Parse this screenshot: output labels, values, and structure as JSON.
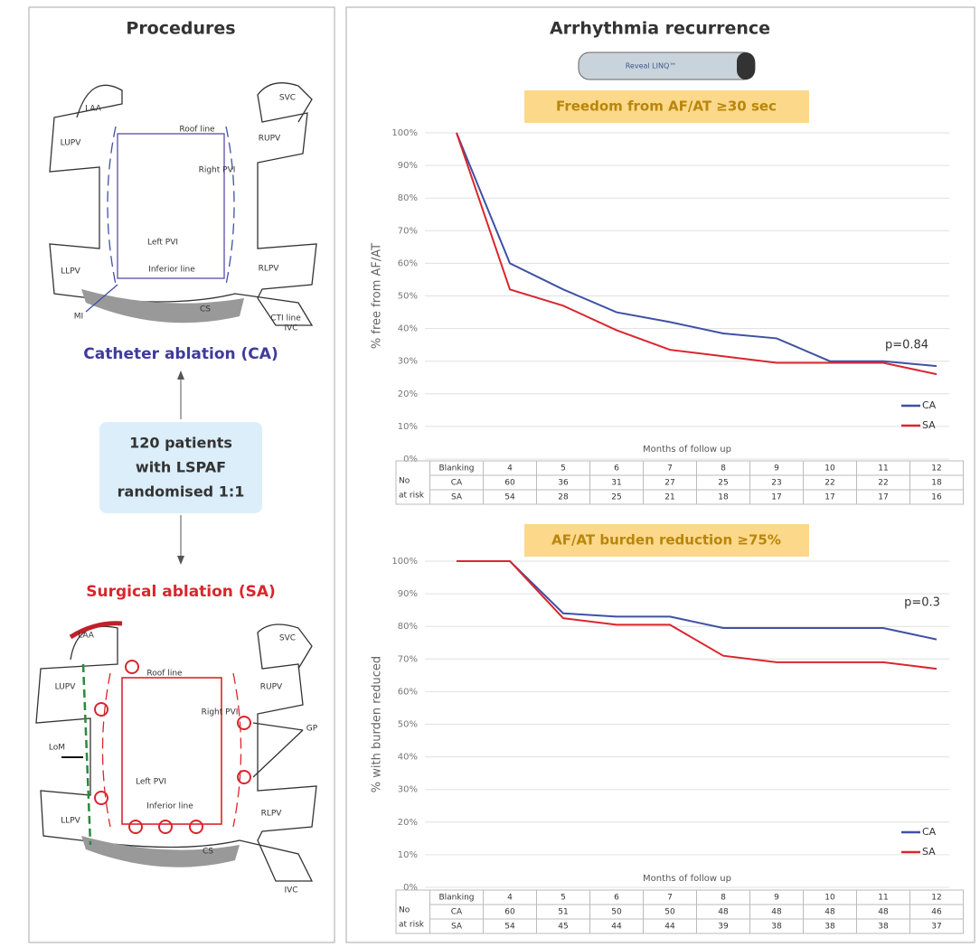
{
  "procedures": {
    "title": "Procedures",
    "ca_diagram": {
      "labels": [
        "LAA",
        "SVC",
        "LUPV",
        "RUPV",
        "Roof line",
        "Right PVI",
        "Left PVI",
        "Inferior line",
        "LLPV",
        "RLPV",
        "MI",
        "CS",
        "CTI line",
        "IVC"
      ]
    },
    "ca_label": "Catheter ablation (CA)",
    "patients_box": [
      "120 patients",
      "with LSPAF",
      "randomised 1:1"
    ],
    "sa_label": "Surgical ablation (SA)",
    "sa_diagram": {
      "labels": [
        "LAA",
        "SVC",
        "LUPV",
        "RUPV",
        "Roof line",
        "Right PVI",
        "LoM",
        "GP",
        "Left PVI",
        "Inferior line",
        "LLPV",
        "RLPV",
        "CS",
        "IVC"
      ]
    }
  },
  "recurrence": {
    "title": "Arrhythmia recurrence",
    "device_label": "Reveal LINQ™"
  },
  "chart_data": [
    {
      "type": "line",
      "title": "Freedom from AF/AT ≥30 sec",
      "ylabel": "% free from AF/AT",
      "xlabel": "Months of follow up",
      "categories": [
        "Blanking",
        "4",
        "5",
        "6",
        "7",
        "8",
        "9",
        "10",
        "11",
        "12"
      ],
      "series": [
        {
          "name": "CA",
          "color": "#3f51a3",
          "values": [
            100,
            60,
            52,
            45,
            42,
            38.5,
            37,
            30,
            30,
            28.5
          ]
        },
        {
          "name": "SA",
          "color": "#d9262e",
          "values": [
            100,
            52,
            47,
            39.5,
            33.5,
            31.5,
            29.5,
            29.5,
            29.5,
            26
          ]
        }
      ],
      "ylim": [
        0,
        100
      ],
      "yticks": [
        {
          "value": 0,
          "label": "0%"
        },
        {
          "value": 10,
          "label": "10%"
        },
        {
          "value": 20,
          "label": "20%"
        },
        {
          "value": 30,
          "label": "30%"
        },
        {
          "value": 40,
          "label": "40%"
        },
        {
          "value": 50,
          "label": "50%"
        },
        {
          "value": 60,
          "label": "60%"
        },
        {
          "value": 70,
          "label": "70%"
        },
        {
          "value": 80,
          "label": "80%"
        },
        {
          "value": 90,
          "label": "90%"
        },
        {
          "value": 100,
          "label": "100%"
        }
      ],
      "grid": true,
      "annotation": "p=0.84",
      "risk_label": [
        "No",
        "at risk"
      ],
      "risk_rows": [
        {
          "name": "CA",
          "values": [
            60,
            36,
            31,
            27,
            25,
            23,
            22,
            22,
            18
          ]
        },
        {
          "name": "SA",
          "values": [
            54,
            28,
            25,
            21,
            18,
            17,
            17,
            17,
            16
          ]
        }
      ]
    },
    {
      "type": "line",
      "title": "AF/AT burden reduction ≥75%",
      "ylabel": "% with burden reduced",
      "xlabel": "Months of follow up",
      "categories": [
        "Blanking",
        "4",
        "5",
        "6",
        "7",
        "8",
        "9",
        "10",
        "11",
        "12"
      ],
      "series": [
        {
          "name": "CA",
          "color": "#3f51a3",
          "values": [
            100,
            100,
            84,
            83,
            83,
            79.5,
            79.5,
            79.5,
            79.5,
            76
          ]
        },
        {
          "name": "SA",
          "color": "#d9262e",
          "values": [
            100,
            100,
            82.5,
            80.5,
            80.5,
            71,
            69,
            69,
            69,
            67
          ]
        }
      ],
      "ylim": [
        0,
        100
      ],
      "yticks": [
        {
          "value": 0,
          "label": "0%"
        },
        {
          "value": 10,
          "label": "10%"
        },
        {
          "value": 20,
          "label": "20%"
        },
        {
          "value": 30,
          "label": "30%"
        },
        {
          "value": 40,
          "label": "40%"
        },
        {
          "value": 50,
          "label": "50%"
        },
        {
          "value": 60,
          "label": "60%"
        },
        {
          "value": 70,
          "label": "70%"
        },
        {
          "value": 80,
          "label": "80%"
        },
        {
          "value": 90,
          "label": "90%"
        },
        {
          "value": 100,
          "label": "100%"
        }
      ],
      "grid": true,
      "annotation": "p=0.3",
      "risk_label": [
        "No",
        "at risk"
      ],
      "risk_rows": [
        {
          "name": "CA",
          "values": [
            60,
            51,
            50,
            50,
            48,
            48,
            48,
            48,
            46
          ]
        },
        {
          "name": "SA",
          "values": [
            54,
            45,
            44,
            44,
            39,
            38,
            38,
            38,
            37
          ]
        }
      ]
    }
  ]
}
